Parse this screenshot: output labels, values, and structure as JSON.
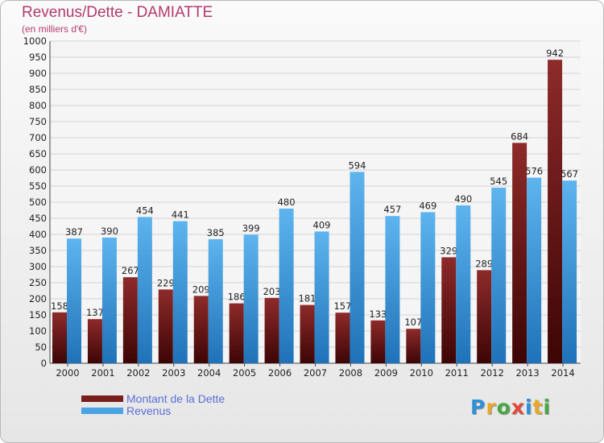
{
  "header": {
    "title": "Revenus/Dette - DAMIATTE",
    "subtitle": "(en milliers d'€)"
  },
  "logo": {
    "text": "Proxiti",
    "letters": [
      {
        "char": "P",
        "color": "#2f8fd8"
      },
      {
        "char": "r",
        "color": "#e8a72a"
      },
      {
        "char": "o",
        "color": "#45a844"
      },
      {
        "char": "x",
        "color": "#e2483c"
      },
      {
        "char": "i",
        "color": "#2f8fd8"
      },
      {
        "char": "t",
        "color": "#e8a72a"
      },
      {
        "char": "i",
        "color": "#45a844"
      }
    ]
  },
  "chart_data": {
    "type": "bar",
    "title": "Revenus/Dette - DAMIATTE",
    "subtitle": "(en milliers d'€)",
    "categories": [
      "2000",
      "2001",
      "2002",
      "2003",
      "2004",
      "2005",
      "2006",
      "2007",
      "2008",
      "2009",
      "2010",
      "2011",
      "2012",
      "2013",
      "2014"
    ],
    "series": [
      {
        "name": "Montant de la Dette",
        "color": "#7a1d1d",
        "values": [
          158,
          137,
          267,
          229,
          209,
          186,
          203,
          181,
          157,
          133,
          107,
          329,
          289,
          684,
          942
        ]
      },
      {
        "name": "Revenus",
        "color": "#4aa3e2",
        "values": [
          387,
          390,
          454,
          441,
          385,
          399,
          480,
          409,
          594,
          457,
          469,
          490,
          545,
          576,
          567
        ]
      }
    ],
    "ylim": [
      0,
      1000
    ],
    "yticks": [
      0,
      50,
      100,
      150,
      200,
      250,
      300,
      350,
      400,
      450,
      500,
      550,
      600,
      650,
      700,
      750,
      800,
      850,
      900,
      950,
      1000
    ],
    "grid": true,
    "legend_position": "bottom-left"
  }
}
